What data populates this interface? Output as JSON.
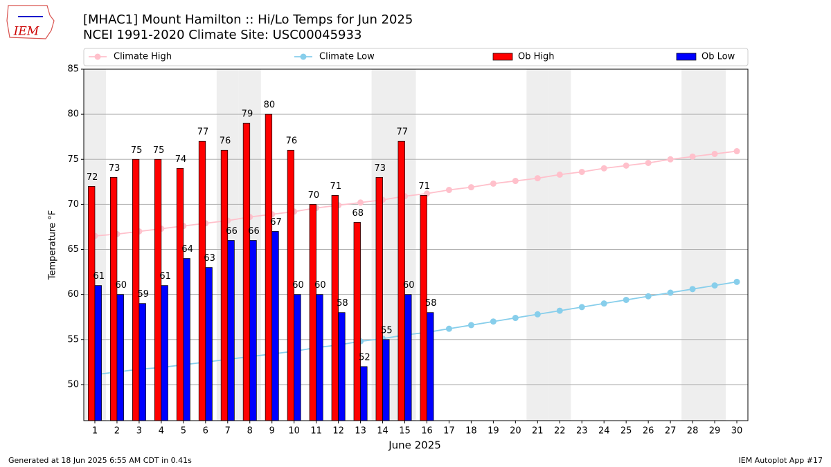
{
  "header": {
    "logo": "IEM",
    "footer_left": "Generated at 18 Jun 2025 6:55 AM CDT in 0.41s",
    "footer_right": "IEM Autoplot App #17"
  },
  "chart_data": {
    "type": "bar_line",
    "title": "[MHAC1] Mount Hamilton :: Hi/Lo Temps for Jun 2025",
    "subtitle": "NCEI 1991-2020 Climate Site: USC00045933",
    "xlabel": "June 2025",
    "ylabel": "Temperature °F",
    "x": [
      1,
      2,
      3,
      4,
      5,
      6,
      7,
      8,
      9,
      10,
      11,
      12,
      13,
      14,
      15,
      16,
      17,
      18,
      19,
      20,
      21,
      22,
      23,
      24,
      25,
      26,
      27,
      28,
      29,
      30
    ],
    "xlim": [
      0.5,
      30.5
    ],
    "xticks": [
      1,
      2,
      3,
      4,
      5,
      6,
      7,
      8,
      9,
      10,
      11,
      12,
      13,
      14,
      15,
      16,
      17,
      18,
      19,
      20,
      21,
      22,
      23,
      24,
      25,
      26,
      27,
      28,
      29,
      30
    ],
    "ylim": [
      46,
      85
    ],
    "yticks": [
      50,
      55,
      60,
      65,
      70,
      75,
      80,
      85
    ],
    "grid": true,
    "shaded_days": [
      1,
      7,
      8,
      14,
      15,
      21,
      22,
      28,
      29
    ],
    "series": [
      {
        "name": "Climate High",
        "kind": "line",
        "color": "#ffc0cb",
        "values": [
          66.5,
          66.7,
          67.0,
          67.3,
          67.6,
          67.9,
          68.2,
          68.6,
          68.9,
          69.2,
          69.6,
          69.9,
          70.2,
          70.5,
          70.9,
          71.2,
          71.6,
          71.9,
          72.3,
          72.6,
          72.9,
          73.3,
          73.6,
          74.0,
          74.3,
          74.6,
          75.0,
          75.3,
          75.6,
          75.9
        ]
      },
      {
        "name": "Climate Low",
        "kind": "line",
        "color": "#87ceeb",
        "values": [
          51.1,
          51.4,
          51.7,
          51.9,
          52.2,
          52.5,
          52.8,
          53.1,
          53.4,
          53.7,
          54.1,
          54.4,
          54.8,
          55.1,
          55.5,
          55.8,
          56.2,
          56.6,
          57.0,
          57.4,
          57.8,
          58.2,
          58.6,
          59.0,
          59.4,
          59.8,
          60.2,
          60.6,
          61.0,
          61.4
        ]
      },
      {
        "name": "Ob High",
        "kind": "bar",
        "color": "#ff0000",
        "values": [
          72,
          73,
          75,
          75,
          74,
          77,
          76,
          79,
          80,
          76,
          70,
          71,
          68,
          73,
          77,
          71,
          null,
          null,
          null,
          null,
          null,
          null,
          null,
          null,
          null,
          null,
          null,
          null,
          null,
          null
        ]
      },
      {
        "name": "Ob Low",
        "kind": "bar",
        "color": "#0000ff",
        "values": [
          61,
          60,
          59,
          61,
          64,
          63,
          66,
          66,
          67,
          60,
          60,
          58,
          52,
          55,
          60,
          58,
          null,
          null,
          null,
          null,
          null,
          null,
          null,
          null,
          null,
          null,
          null,
          null,
          null,
          null
        ]
      }
    ]
  }
}
